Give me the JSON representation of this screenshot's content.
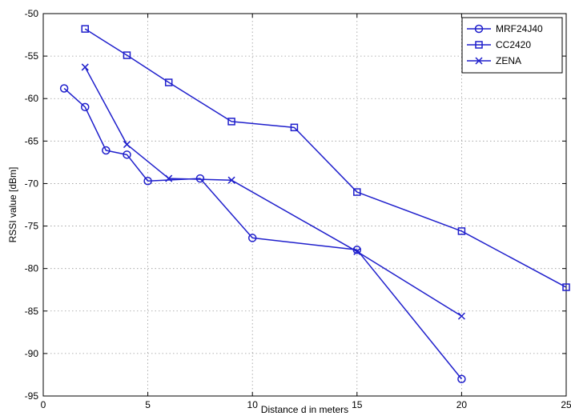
{
  "chart_data": {
    "type": "line",
    "xlabel": "Distance d in meters",
    "ylabel": "RSSI value [dBm]",
    "xlim": [
      0,
      25
    ],
    "ylim": [
      -95,
      -50
    ],
    "xticks": [
      0,
      5,
      10,
      15,
      20,
      25
    ],
    "yticks": [
      -95,
      -90,
      -85,
      -80,
      -75,
      -70,
      -65,
      -60,
      -55,
      -50
    ],
    "grid": true,
    "legend_position": "top-right",
    "series": [
      {
        "name": "MRF24J40",
        "marker": "circle",
        "color": "#1f1fcc",
        "x": [
          1,
          2,
          3,
          4,
          5,
          7.5,
          10,
          15,
          20
        ],
        "y": [
          -58.8,
          -61.0,
          -66.1,
          -66.6,
          -69.7,
          -69.4,
          -76.4,
          -77.8,
          -93.0
        ]
      },
      {
        "name": "CC2420",
        "marker": "square",
        "color": "#1f1fcc",
        "x": [
          2,
          4,
          6,
          9,
          12,
          15,
          20,
          25
        ],
        "y": [
          -51.8,
          -54.9,
          -58.1,
          -62.7,
          -63.4,
          -71.0,
          -75.6,
          -82.2
        ]
      },
      {
        "name": "ZENA",
        "marker": "x",
        "color": "#1f1fcc",
        "x": [
          2,
          4,
          6,
          9,
          15,
          20
        ],
        "y": [
          -56.3,
          -65.4,
          -69.4,
          -69.6,
          -78.0,
          -85.6
        ]
      }
    ]
  }
}
